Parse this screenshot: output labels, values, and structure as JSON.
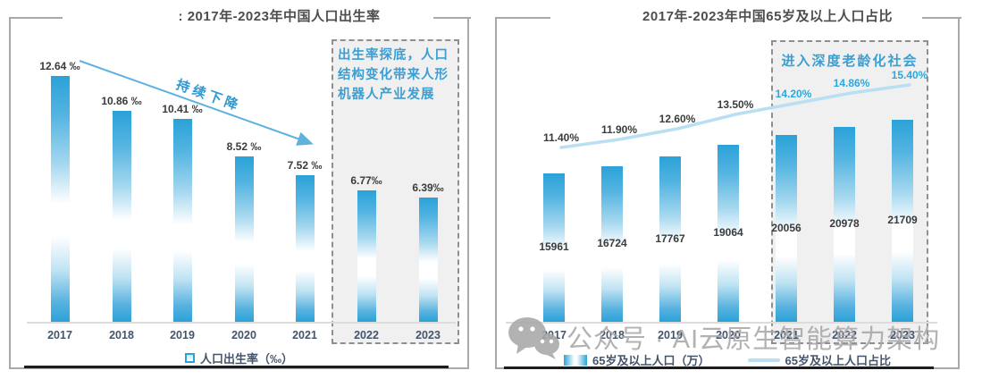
{
  "colors": {
    "bar_blue": "#2aa2d8",
    "accent_blue": "#3a9fd4",
    "percent_highlight": "#29a9e0",
    "label_dark": "#3b3b3b",
    "trend_line_blue": "#b8dff2",
    "arrow_blue": "#5fb2de",
    "box_background": "#f0f0f0",
    "card_border_gray": "#a9a9a9",
    "watermark_gray": "#a8a8a8"
  },
  "watermark": {
    "icon": "wechat-icon",
    "text": "公众号 · AI云原生智能算力架构"
  },
  "left_chart": {
    "title": ": 2017年-2023年中国人口出生率",
    "trend_label": "持续下降",
    "callout_text": "出生率探底，人口结构变化带来人形机器人产业发展",
    "legend": [
      {
        "icon": "blue-square",
        "label": "人口出生率（‰）"
      }
    ]
  },
  "right_chart": {
    "title": "2017年-2023年中国65岁及以上人口占比",
    "callout_text": "进入深度老龄化社会",
    "legend": [
      {
        "icon": "gradient-bar",
        "label": "65岁及以上人口（万）"
      },
      {
        "icon": "light-blue-line",
        "label": "65岁及以上人口占比"
      }
    ]
  },
  "chart_data": [
    {
      "type": "bar",
      "title": "2017年-2023年中国人口出生率",
      "categories": [
        "2017",
        "2018",
        "2019",
        "2020",
        "2021",
        "2022",
        "2023"
      ],
      "values": [
        12.64,
        10.86,
        10.41,
        8.52,
        7.52,
        6.77,
        6.39
      ],
      "value_labels": [
        "12.64 ‰",
        "10.86 ‰",
        "10.41 ‰",
        "8.52 ‰",
        "7.52 ‰",
        "6.77‰",
        "6.39‰"
      ],
      "ylabel": "人口出生率（‰）",
      "xlabel": "",
      "highlight_categories": [
        "2022",
        "2023"
      ],
      "annotations": [
        "持续下降",
        "出生率探底，人口结构变化带来人形机器人产业发展"
      ],
      "grid": false,
      "legend_position": "bottom"
    },
    {
      "type": "bar+line",
      "title": "2017年-2023年中国65岁及以上人口占比",
      "categories": [
        "2017",
        "2018",
        "2019",
        "2020",
        "2021",
        "2022",
        "2023"
      ],
      "series": [
        {
          "name": "65岁及以上人口（万）",
          "type": "bar",
          "values": [
            15961,
            16724,
            17767,
            19064,
            20056,
            20978,
            21709
          ],
          "value_labels": [
            "15961",
            "16724",
            "17767",
            "19064",
            "20056",
            "20978",
            "21709"
          ]
        },
        {
          "name": "65岁及以上人口占比",
          "type": "line",
          "values": [
            11.4,
            11.9,
            12.6,
            13.5,
            14.2,
            14.86,
            15.4
          ],
          "value_labels": [
            "11.40%",
            "11.90%",
            "12.60%",
            "13.50%",
            "14.20%",
            "14.86%",
            "15.40%"
          ],
          "highlight_from_index": 4
        }
      ],
      "highlight_categories": [
        "2021",
        "2022",
        "2023"
      ],
      "annotations": [
        "进入深度老龄化社会"
      ],
      "grid": false,
      "legend_position": "bottom"
    }
  ]
}
